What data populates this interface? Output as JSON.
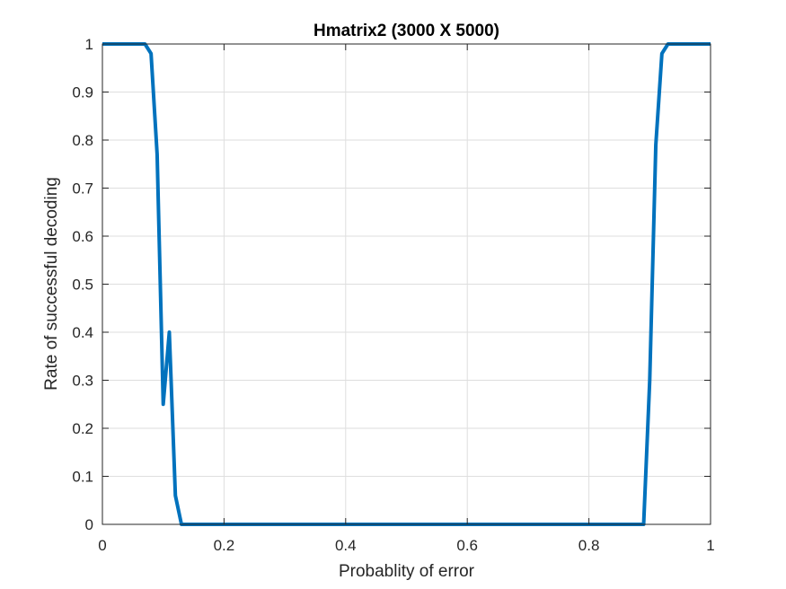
{
  "chart_data": {
    "type": "line",
    "title": "Hmatrix2 (3000 X 5000)",
    "xlabel": "Probablity of error",
    "ylabel": "Rate of successful decoding",
    "xlim": [
      0,
      1
    ],
    "ylim": [
      0,
      1
    ],
    "xticks": [
      "0",
      "0.2",
      "0.4",
      "0.6",
      "0.8",
      "1"
    ],
    "xtick_values": [
      0,
      0.2,
      0.4,
      0.6,
      0.8,
      1
    ],
    "yticks": [
      "0",
      "0.1",
      "0.2",
      "0.3",
      "0.4",
      "0.5",
      "0.6",
      "0.7",
      "0.8",
      "0.9",
      "1"
    ],
    "ytick_values": [
      0,
      0.1,
      0.2,
      0.3,
      0.4,
      0.5,
      0.6,
      0.7,
      0.8,
      0.9,
      1
    ],
    "grid": true,
    "series": [
      {
        "color": "#0072BD",
        "x": [
          0,
          0.01,
          0.02,
          0.03,
          0.04,
          0.05,
          0.06,
          0.07,
          0.08,
          0.09,
          0.1,
          0.11,
          0.12,
          0.13,
          0.14,
          0.2,
          0.3,
          0.4,
          0.5,
          0.6,
          0.7,
          0.8,
          0.86,
          0.87,
          0.88,
          0.89,
          0.9,
          0.91,
          0.92,
          0.93,
          0.94,
          0.95,
          0.96,
          0.97,
          0.98,
          0.99,
          1.0
        ],
        "y": [
          1,
          1,
          1,
          1,
          1,
          1,
          1,
          1,
          0.98,
          0.77,
          0.25,
          0.4,
          0.06,
          0,
          0,
          0,
          0,
          0,
          0,
          0,
          0,
          0,
          0,
          0,
          0,
          0,
          0.3,
          0.79,
          0.98,
          1,
          1,
          1,
          1,
          1,
          1,
          1,
          1
        ]
      }
    ]
  }
}
